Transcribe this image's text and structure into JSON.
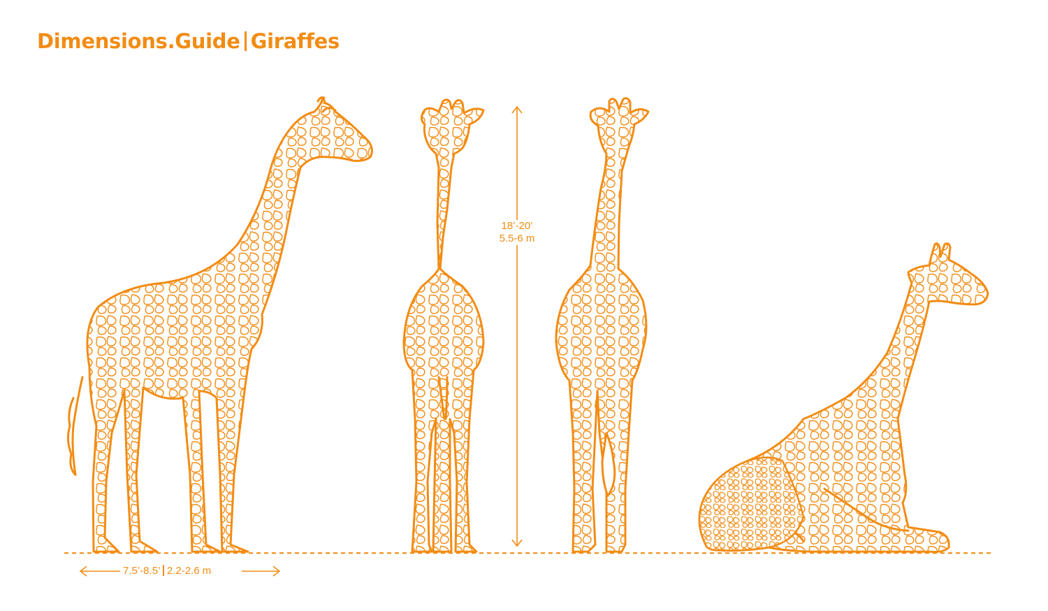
{
  "header": {
    "brand": "Dimensions.Guide",
    "subject": "Giraffes"
  },
  "dimensions": {
    "height_imperial": "18’-20’",
    "height_metric": "5.5-6 m",
    "length_imperial": "7.5’-8.5’",
    "length_metric": "2.2-2.6 m"
  },
  "colors": {
    "accent": "#f28c14",
    "background": "#ffffff"
  },
  "views": [
    "side-view",
    "front-view",
    "rear-view",
    "lying-view"
  ]
}
